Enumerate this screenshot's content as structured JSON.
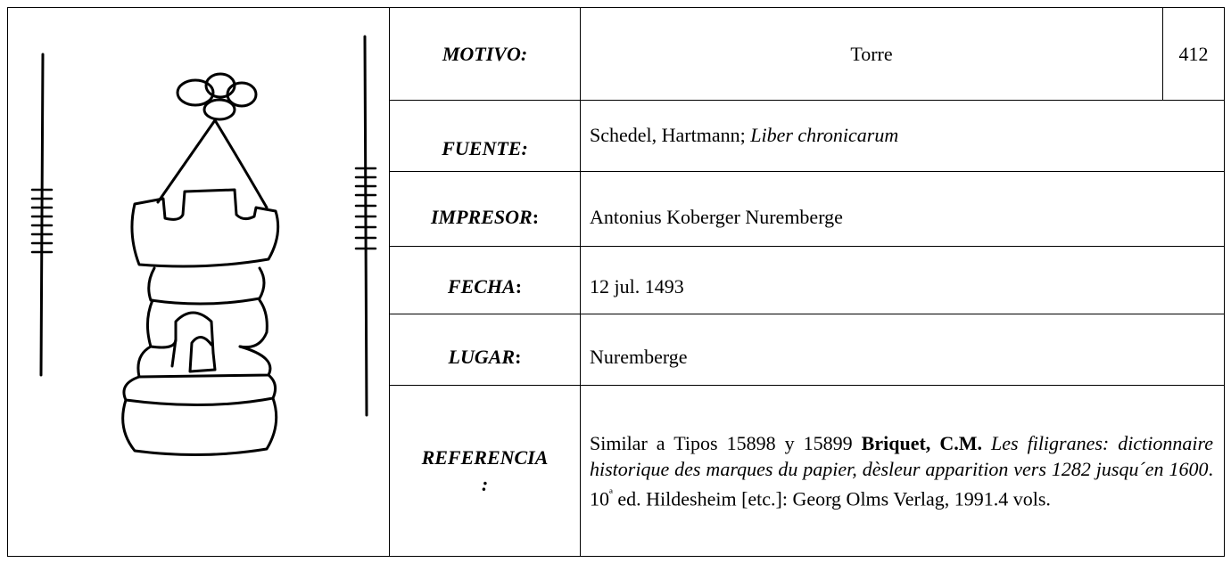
{
  "record": {
    "number": "412",
    "rows": [
      {
        "label": "MOTIVO:",
        "value": "Torre"
      },
      {
        "label": "FUENTE:",
        "value": "Schedel, Hartmann;",
        "value_italic": "Liber chronicarum"
      },
      {
        "label": "IMPRESOR",
        "colon": ":",
        "value": "Antonius Koberger Nuremberge"
      },
      {
        "label": "FECHA",
        "colon": ":",
        "value": "12 jul. 1493"
      },
      {
        "label": "LUGAR",
        "colon": ":",
        "value": "Nuremberge"
      },
      {
        "label": "REFERENCIA",
        "colon": ":",
        "segments": [
          "Similar a Tipos 15898 y 15899",
          "Briquet, C.M.",
          "Les filigranes: dictionnaire historique des marques du papier, dèsleur apparition vers 1282 jusqu´en 1600",
          ". 10",
          "ª",
          " ed. Hildesheim [etc.]: Georg Olms Verlag, 1991.4 vols."
        ]
      }
    ]
  }
}
